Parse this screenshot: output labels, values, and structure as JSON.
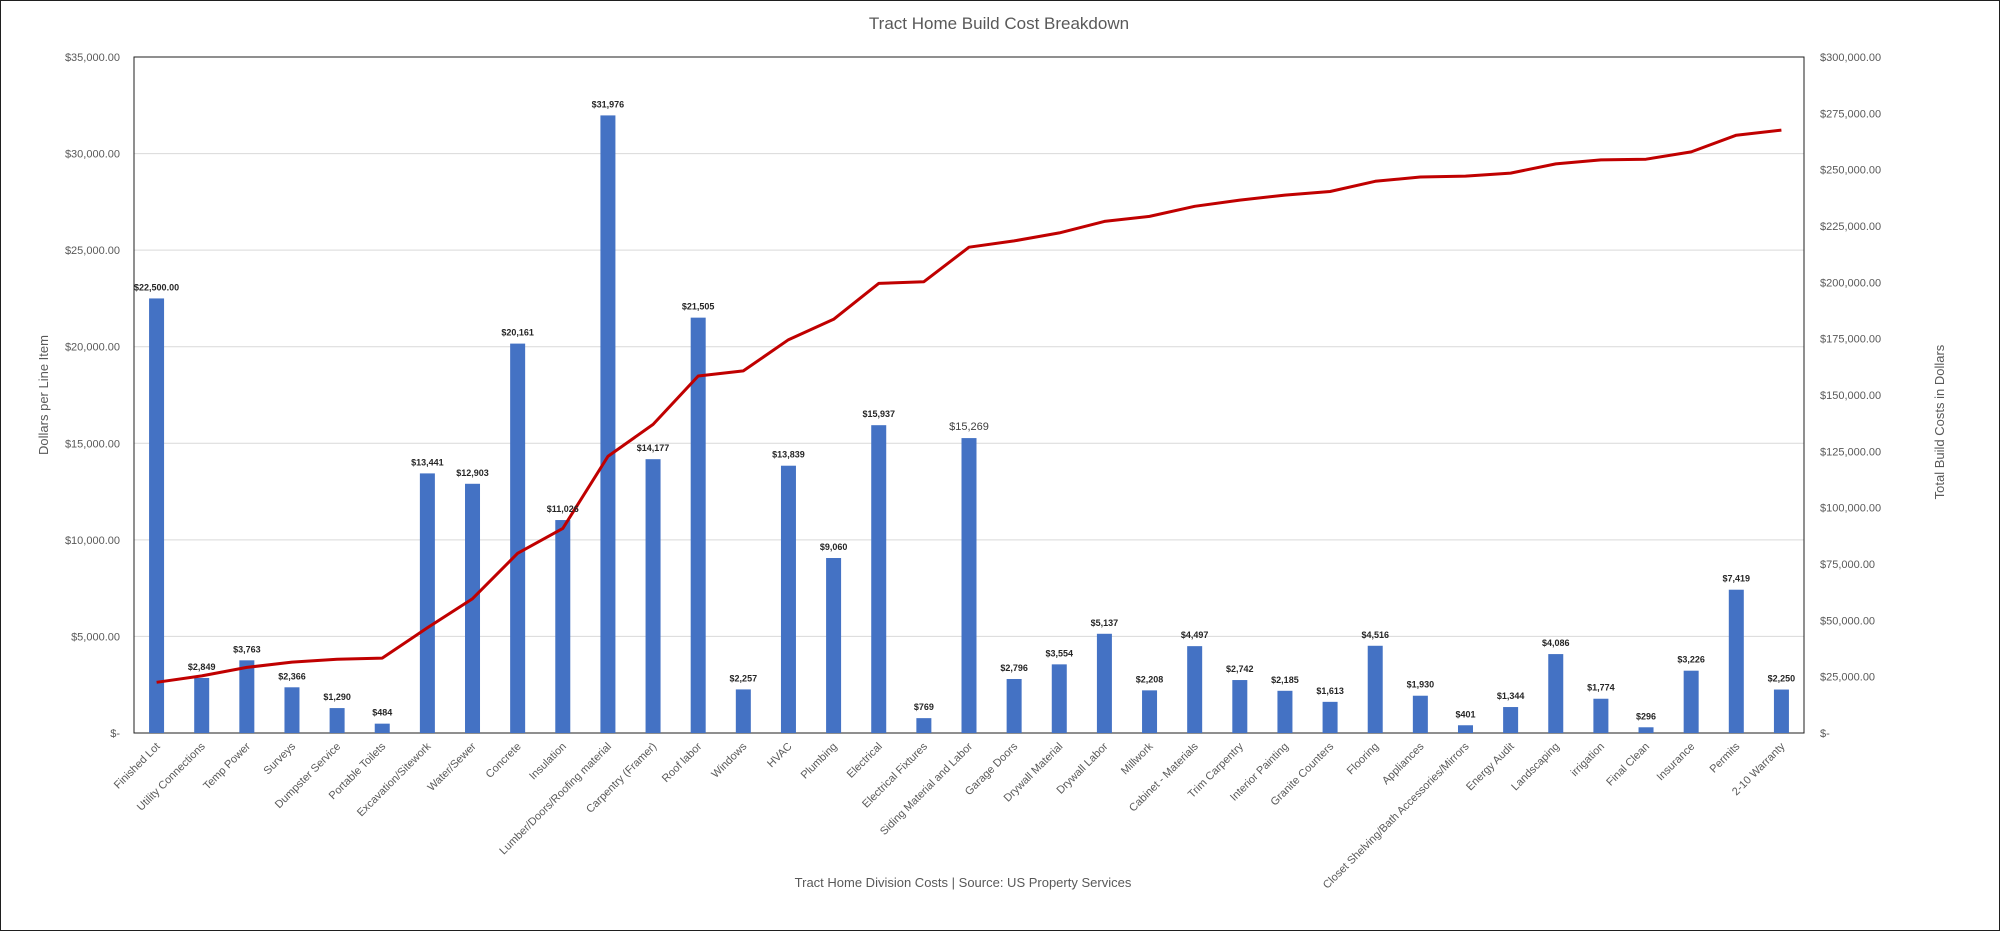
{
  "chart_data": {
    "type": "bar",
    "title": "Tract Home Build Cost Breakdown",
    "xlabel": "Tract Home Division Costs | Source: US Property Services",
    "ylabel": "Dollars per Line Item",
    "y2label": "Total Build Costs in Dollars",
    "ylim": [
      0,
      35000
    ],
    "y2lim": [
      0,
      300000
    ],
    "grid": true,
    "legend": "none",
    "yticks": [
      "$-",
      "$5,000.00",
      "$10,000.00",
      "$15,000.00",
      "$20,000.00",
      "$25,000.00",
      "$30,000.00",
      "$35,000.00"
    ],
    "y2ticks": [
      "$-",
      "$25,000.00",
      "$50,000.00",
      "$75,000.00",
      "$100,000.00",
      "$125,000.00",
      "$150,000.00",
      "$175,000.00",
      "$200,000.00",
      "$225,000.00",
      "$250,000.00",
      "$275,000.00",
      "$300,000.00"
    ],
    "categories": [
      "Finished Lot",
      "Utility Connections",
      "Temp Power",
      "Surveys",
      "Dumpster Service",
      "Portable Toilets",
      "Excavation/Sitework",
      "Water/Sewer",
      "Concrete",
      "Insulation",
      "Lumber/Doors/Roofing material",
      "Carpentry (Framer)",
      "Roof labor",
      "Windows",
      "HVAC",
      "Plumbing",
      "Electrical",
      "Electrical Fixtures",
      "Siding Material and Labor",
      "Garage Doors",
      "Drywall Material",
      "Drywall Labor",
      "Millwork",
      "Cabinet - Materials",
      "Trim Carpentry",
      "Interior Painting",
      "Granite Counters",
      "Flooring",
      "Appliances",
      "Closet Shelving/Bath Accessories/Mirrors",
      "Energy Audit",
      "Landscaping",
      "irrigation",
      "Final Clean",
      "Insurance",
      "Permits",
      "2-10 Warranty"
    ],
    "series": [
      {
        "type": "bar",
        "axis": "left",
        "color": "#4472c4",
        "values": [
          22500,
          2849,
          3763,
          2366,
          1290,
          484,
          13441,
          12903,
          20161,
          11026,
          31976,
          14177,
          21505,
          2257,
          13839,
          9060,
          15937,
          769,
          15269,
          2796,
          3554,
          5137,
          2208,
          4497,
          2742,
          2185,
          1613,
          4516,
          1930,
          401,
          1344,
          4086,
          1774,
          296,
          3226,
          7419,
          2250
        ],
        "labels": [
          "$22,500.00",
          "$2,849",
          "$3,763",
          "$2,366",
          "$1,290",
          "$484",
          "$13,441",
          "$12,903",
          "$20,161",
          "$11,026",
          "$31,976",
          "$14,177",
          "$21,505",
          "$2,257",
          "$13,839",
          "$9,060",
          "$15,937",
          "$769",
          "$15,269",
          "$2,796",
          "$3,554",
          "$5,137",
          "$2,208",
          "$4,497",
          "$2,742",
          "$2,185",
          "$1,613",
          "$4,516",
          "$1,930",
          "$401",
          "$1,344",
          "$4,086",
          "$1,774",
          "$296",
          "$3,226",
          "$7,419",
          "$2,250"
        ]
      },
      {
        "type": "line",
        "axis": "right",
        "color": "#c00000",
        "values": [
          22500,
          25349,
          29112,
          31478,
          32768,
          33252,
          46693,
          59596,
          79757,
          90783,
          122759,
          136936,
          158441,
          160698,
          174537,
          183597,
          199534,
          200303,
          215572,
          218368,
          221922,
          227059,
          229267,
          233764,
          236506,
          238691,
          240304,
          244820,
          246750,
          247151,
          248495,
          252581,
          254355,
          254651,
          257877,
          265296,
          267546
        ]
      }
    ]
  }
}
